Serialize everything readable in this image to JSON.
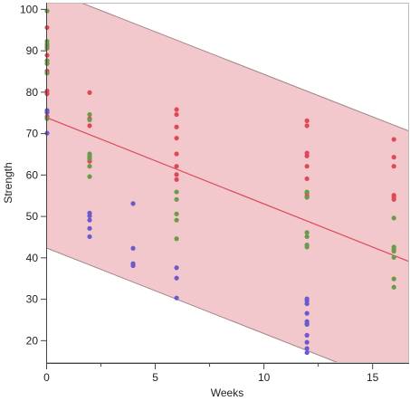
{
  "chart_data": {
    "type": "scatter",
    "xlabel": "Weeks",
    "ylabel": "Strength",
    "xlim": [
      0,
      16.7
    ],
    "ylim": [
      14.5,
      101.5
    ],
    "x_ticks": [
      0,
      5,
      10,
      15
    ],
    "x_minor_ticks": [
      2.5,
      7.5,
      12.5
    ],
    "y_ticks": [
      20,
      30,
      40,
      50,
      60,
      70,
      80,
      90,
      100
    ],
    "grid": false,
    "legend": "none",
    "fit_line": {
      "x": [
        0,
        16.7
      ],
      "y": [
        73.8,
        39.0
      ],
      "color": "#e04858"
    },
    "band": {
      "upper": {
        "x": [
          0,
          16.7
        ],
        "y": [
          104.8,
          70.5
        ]
      },
      "lower": {
        "x": [
          0,
          16.7
        ],
        "y": [
          42.3,
          7.8
        ]
      },
      "fill": "#f2c8cd",
      "edge": "#a08488"
    },
    "series": [
      {
        "color": "#e04858",
        "x": [
          0,
          0,
          0,
          0,
          0,
          0,
          0,
          0,
          2,
          2,
          2,
          2,
          2,
          6,
          6,
          6,
          6,
          6,
          6,
          6,
          6,
          12,
          12,
          12,
          12,
          12,
          12,
          12,
          12,
          16,
          16,
          16,
          16,
          16,
          16
        ],
        "y": [
          95.5,
          91.0,
          88.8,
          87.5,
          85.0,
          80.2,
          79.5,
          74.0,
          79.8,
          73.5,
          71.8,
          64.0,
          63.2,
          75.7,
          74.5,
          71.5,
          68.8,
          65.0,
          62.0,
          60.0,
          58.8,
          73.0,
          71.8,
          65.2,
          64.5,
          62.0,
          59.0,
          55.5,
          54.8,
          68.5,
          64.2,
          62.0,
          55.0,
          54.5,
          54.0
        ]
      },
      {
        "color": "#6a9a4a",
        "x": [
          0,
          0,
          0,
          0,
          0,
          0,
          0,
          0,
          2,
          2,
          2,
          2,
          2,
          2,
          2,
          6,
          6,
          6,
          6,
          6,
          12,
          12,
          12,
          12,
          12,
          12,
          16,
          16,
          16,
          16,
          16,
          16,
          16
        ],
        "y": [
          99.5,
          92.2,
          91.5,
          90.5,
          87.5,
          86.8,
          84.5,
          73.5,
          74.5,
          73.2,
          65.0,
          64.5,
          63.8,
          62.0,
          59.5,
          55.8,
          54.0,
          50.5,
          49.0,
          44.5,
          55.8,
          54.5,
          46.0,
          45.0,
          43.0,
          42.5,
          49.5,
          42.5,
          42.0,
          41.5,
          40.0,
          34.8,
          32.8
        ]
      },
      {
        "color": "#6a5acd",
        "x": [
          0,
          0,
          0,
          2,
          2,
          2,
          2,
          2,
          4,
          4,
          4,
          4,
          6,
          6,
          6,
          12,
          12,
          12,
          12,
          12,
          12,
          12,
          12,
          12,
          12,
          12
        ],
        "y": [
          75.5,
          75.0,
          70.0,
          50.7,
          50.0,
          49.0,
          47.0,
          45.0,
          53.0,
          42.2,
          38.5,
          38.0,
          37.5,
          35.0,
          30.2,
          30.0,
          29.5,
          28.8,
          26.5,
          24.5,
          24.0,
          23.8,
          21.2,
          19.5,
          18.0,
          17.0
        ]
      }
    ]
  }
}
